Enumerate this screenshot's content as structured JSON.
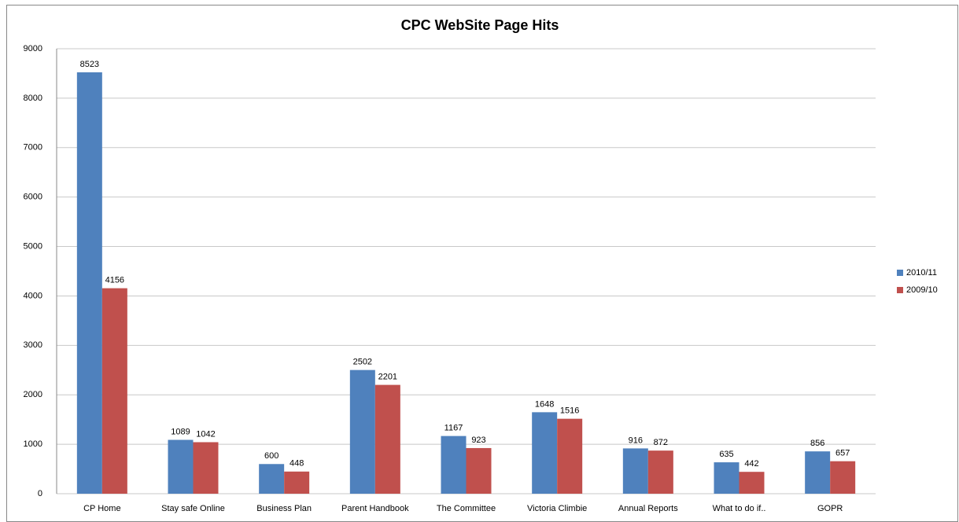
{
  "chart_data": {
    "type": "bar",
    "title": "CPC WebSite Page Hits",
    "categories": [
      "CP Home",
      "Stay safe Online",
      "Business Plan",
      "Parent Handbook",
      "The Committee",
      "Victoria Climbie",
      "Annual Reports",
      "What to do if..",
      "GOPR"
    ],
    "series": [
      {
        "name": "2010/11",
        "color": "#4f81bd",
        "values": [
          8523,
          1089,
          600,
          2502,
          1167,
          1648,
          916,
          635,
          856
        ]
      },
      {
        "name": "2009/10",
        "color": "#c0504d",
        "values": [
          4156,
          1042,
          448,
          2201,
          923,
          1516,
          872,
          442,
          657
        ]
      }
    ],
    "ylim": [
      0,
      9000
    ],
    "yticks": [
      0,
      1000,
      2000,
      3000,
      4000,
      5000,
      6000,
      7000,
      8000,
      9000
    ],
    "grid": true,
    "legend": "right"
  }
}
